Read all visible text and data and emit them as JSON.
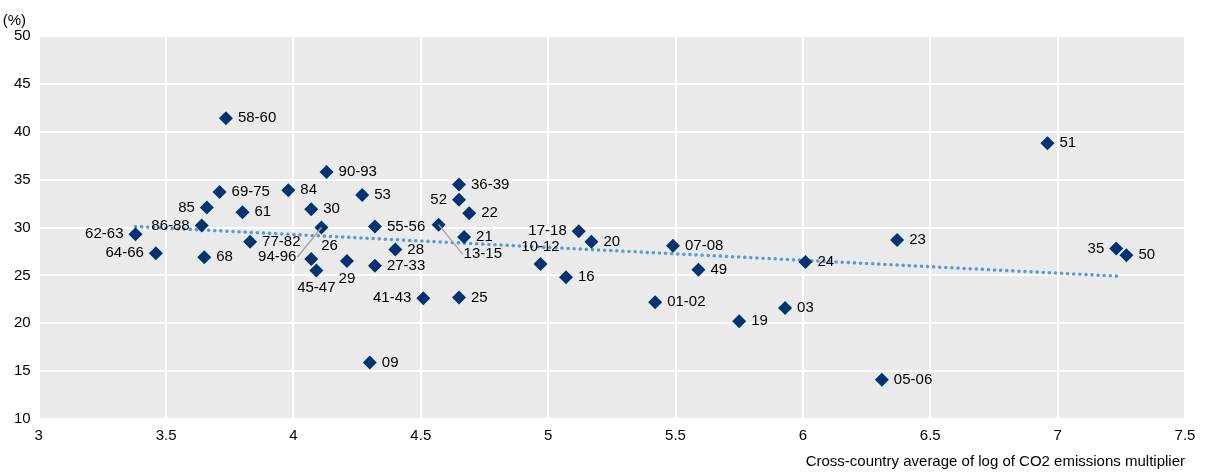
{
  "chart_data": {
    "type": "scatter",
    "xlabel": "Cross-country average of log of CO2 emissions multiplier",
    "ylabel": "(%)",
    "xlim": [
      3,
      7.5
    ],
    "xticks": [
      3,
      3.5,
      4,
      4.5,
      5,
      5.5,
      6,
      6.5,
      7,
      7.5
    ],
    "ylim": [
      10,
      50
    ],
    "yticks": [
      10,
      15,
      20,
      25,
      30,
      35,
      40,
      45,
      50
    ],
    "grid": true,
    "legend": false,
    "marker": "diamond",
    "series": [
      {
        "type": "scatter",
        "color": "#00336f",
        "x": [
          3.735,
          3.71,
          3.66,
          3.64,
          3.8,
          3.38,
          3.46,
          3.65,
          3.83,
          3.98,
          4.07,
          4.13,
          4.11,
          4.27,
          4.32,
          4.4,
          4.32,
          4.07,
          4.21,
          4.09,
          4.3,
          4.51,
          4.65,
          4.65,
          4.65,
          4.69,
          4.57,
          4.67,
          4.97,
          5.07,
          5.12,
          5.17,
          5.42,
          5.49,
          5.59,
          5.75,
          5.93,
          6.01,
          6.96,
          6.37,
          7.23,
          7.27,
          6.31
        ],
        "values": [
          41.4,
          33.7,
          32.1,
          30.2,
          31.6,
          29.3,
          27.3,
          26.9,
          28.5,
          33.9,
          31.9,
          35.8,
          30.0,
          33.4,
          30.1,
          27.7,
          26.0,
          26.7,
          26.5,
          25.5,
          15.9,
          22.6,
          22.7,
          34.5,
          32.9,
          31.5,
          30.3,
          29.0,
          26.2,
          24.8,
          29.6,
          28.5,
          22.2,
          28.1,
          25.6,
          20.2,
          21.6,
          26.4,
          38.8,
          28.7,
          27.8,
          27.1,
          14.1
        ]
      },
      {
        "type": "line",
        "color": "#5b9bd5",
        "line_style": "dotted",
        "marker": "none",
        "x": [
          3.38,
          7.25
        ],
        "values": [
          30.1,
          24.9
        ]
      }
    ],
    "annotations": [
      {
        "text": "58-60",
        "x": 3.735,
        "y": 41.4
      },
      {
        "text": "69-75",
        "x": 3.71,
        "y": 33.7
      },
      {
        "text": "85",
        "x": 3.66,
        "y": 32.1
      },
      {
        "text": "86-88",
        "x": 3.64,
        "y": 30.2
      },
      {
        "text": "61",
        "x": 3.8,
        "y": 31.6
      },
      {
        "text": "62-63",
        "x": 3.38,
        "y": 29.3
      },
      {
        "text": "64-66",
        "x": 3.46,
        "y": 27.3
      },
      {
        "text": "68",
        "x": 3.65,
        "y": 26.9
      },
      {
        "text": "77-82",
        "x": 3.83,
        "y": 28.5
      },
      {
        "text": "84",
        "x": 3.98,
        "y": 33.9
      },
      {
        "text": "30",
        "x": 4.07,
        "y": 31.9
      },
      {
        "text": "90-93",
        "x": 4.13,
        "y": 35.8
      },
      {
        "text": "94-96",
        "x": 4.11,
        "y": 30.0
      },
      {
        "text": "53",
        "x": 4.27,
        "y": 33.4
      },
      {
        "text": "55-56",
        "x": 4.32,
        "y": 30.1
      },
      {
        "text": "28",
        "x": 4.4,
        "y": 27.7
      },
      {
        "text": "27-33",
        "x": 4.32,
        "y": 26.0
      },
      {
        "text": "26",
        "x": 4.07,
        "y": 26.7
      },
      {
        "text": "29",
        "x": 4.21,
        "y": 26.5
      },
      {
        "text": "45-47",
        "x": 4.09,
        "y": 25.5
      },
      {
        "text": "09",
        "x": 4.3,
        "y": 15.9
      },
      {
        "text": "41-43",
        "x": 4.51,
        "y": 22.6
      },
      {
        "text": "25",
        "x": 4.65,
        "y": 22.7
      },
      {
        "text": "36-39",
        "x": 4.65,
        "y": 34.5
      },
      {
        "text": "52",
        "x": 4.65,
        "y": 32.9
      },
      {
        "text": "22",
        "x": 4.69,
        "y": 31.5
      },
      {
        "text": "13-15",
        "x": 4.57,
        "y": 30.3
      },
      {
        "text": "21",
        "x": 4.67,
        "y": 29.0
      },
      {
        "text": "10-12",
        "x": 4.97,
        "y": 26.2
      },
      {
        "text": "16",
        "x": 5.07,
        "y": 24.8
      },
      {
        "text": "17-18",
        "x": 5.12,
        "y": 29.6
      },
      {
        "text": "20",
        "x": 5.17,
        "y": 28.5
      },
      {
        "text": "01-02",
        "x": 5.42,
        "y": 22.2
      },
      {
        "text": "07-08",
        "x": 5.49,
        "y": 28.1
      },
      {
        "text": "49",
        "x": 5.59,
        "y": 25.6
      },
      {
        "text": "19",
        "x": 5.75,
        "y": 20.2
      },
      {
        "text": "03",
        "x": 5.93,
        "y": 21.6
      },
      {
        "text": "24",
        "x": 6.01,
        "y": 26.4
      },
      {
        "text": "51",
        "x": 6.96,
        "y": 38.8
      },
      {
        "text": "23",
        "x": 6.37,
        "y": 28.7
      },
      {
        "text": "35",
        "x": 7.23,
        "y": 27.8
      },
      {
        "text": "50",
        "x": 7.27,
        "y": 27.1
      },
      {
        "text": "05-06",
        "x": 6.31,
        "y": 14.1
      }
    ]
  }
}
